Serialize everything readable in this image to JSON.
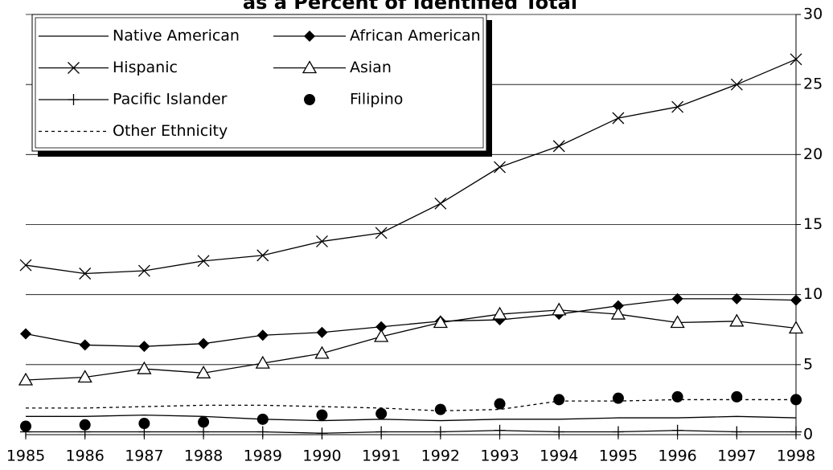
{
  "chart_data": {
    "type": "line",
    "title": "as a Percent of Identified Total",
    "categories": [
      "1985",
      "1986",
      "1987",
      "1988",
      "1989",
      "1990",
      "1991",
      "1992",
      "1993",
      "1994",
      "1995",
      "1996",
      "1997",
      "1998"
    ],
    "ylim": [
      0,
      30
    ],
    "yticks": [
      0,
      5,
      10,
      15,
      20,
      25,
      30
    ],
    "grid": true,
    "series": [
      {
        "name": "Native American",
        "color": "#000000",
        "marker": "none",
        "dash": "solid",
        "values": [
          1.3,
          1.3,
          1.4,
          1.3,
          1.1,
          1.0,
          1.1,
          1.0,
          1.1,
          1.1,
          1.2,
          1.2,
          1.3,
          1.2
        ]
      },
      {
        "name": "African American",
        "color": "#000000",
        "marker": "diamond",
        "dash": "solid",
        "values": [
          7.2,
          6.4,
          6.3,
          6.5,
          7.1,
          7.3,
          7.7,
          8.1,
          8.2,
          8.6,
          9.2,
          9.7,
          9.7,
          9.6
        ]
      },
      {
        "name": "Hispanic",
        "color": "#000000",
        "marker": "x",
        "dash": "solid",
        "values": [
          12.1,
          11.5,
          11.7,
          12.4,
          12.8,
          13.8,
          14.4,
          16.5,
          19.1,
          20.6,
          22.6,
          23.4,
          25.0,
          26.8
        ]
      },
      {
        "name": "Asian",
        "color": "#000000",
        "marker": "triangle",
        "dash": "solid",
        "values": [
          3.9,
          4.1,
          4.7,
          4.4,
          5.1,
          5.8,
          7.0,
          8.0,
          8.6,
          8.9,
          8.6,
          8.0,
          8.1,
          7.6
        ]
      },
      {
        "name": "Pacific Islander",
        "color": "#000000",
        "marker": "plus",
        "dash": "solid",
        "values": [
          0.2,
          0.2,
          0.2,
          0.2,
          0.2,
          0.1,
          0.2,
          0.2,
          0.3,
          0.2,
          0.2,
          0.3,
          0.2,
          0.2
        ]
      },
      {
        "name": "Filipino",
        "color": "#000000",
        "marker": "circle",
        "dash": "none",
        "values": [
          0.6,
          0.7,
          0.8,
          0.9,
          1.1,
          1.4,
          1.5,
          1.8,
          2.2,
          2.5,
          2.6,
          2.7,
          2.7,
          2.5
        ]
      },
      {
        "name": "Other Ethnicity",
        "color": "#000000",
        "marker": "none",
        "dash": "dashed",
        "values": [
          1.9,
          1.9,
          2.0,
          2.1,
          2.1,
          2.0,
          1.9,
          1.7,
          1.8,
          2.4,
          2.4,
          2.5,
          2.5,
          2.5
        ]
      }
    ]
  }
}
